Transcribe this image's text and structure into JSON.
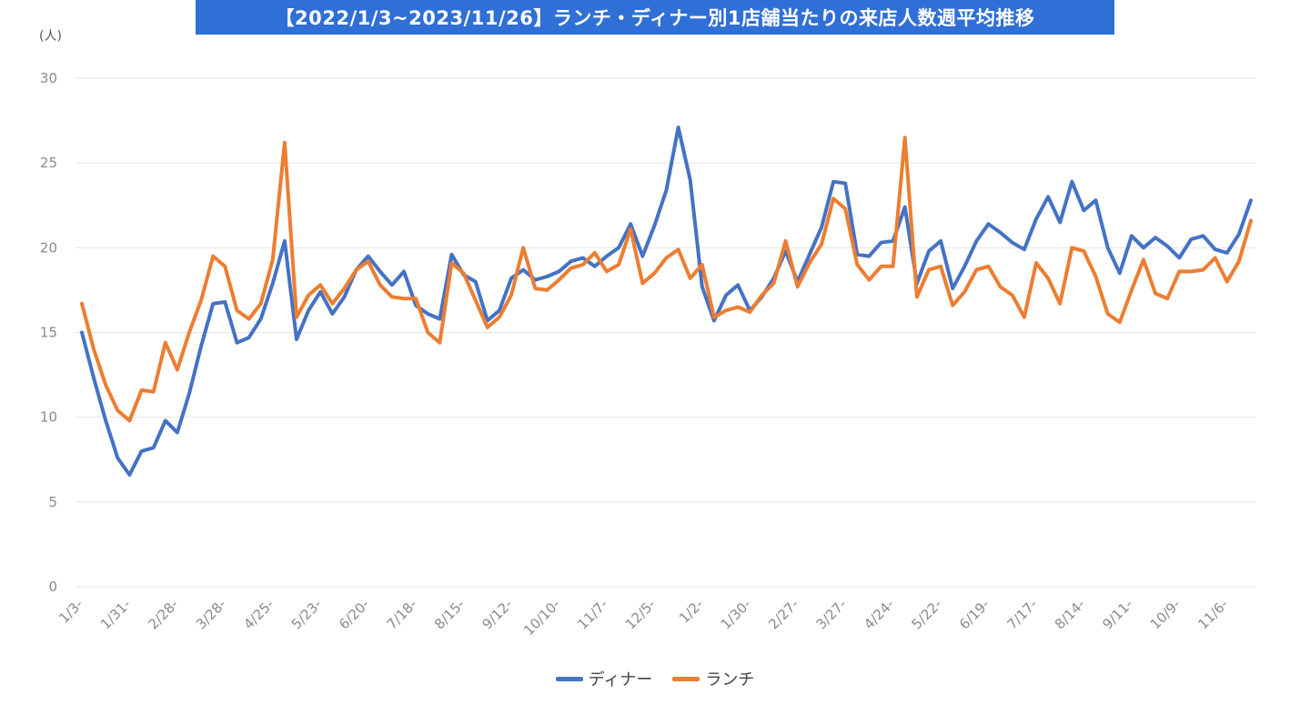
{
  "chart_data": {
    "type": "line",
    "title": "【2022/1/3~2023/11/26】ランチ・ディナー別1店舗当たりの来店人数週平均推移",
    "ylabel": "(人)",
    "xlabel": "",
    "ylim": [
      0,
      30
    ],
    "yticks": [
      0,
      5,
      10,
      15,
      20,
      25,
      30
    ],
    "grid": true,
    "legend_position": "bottom-center",
    "x_tick_labels": [
      "1/3-",
      "1/31-",
      "2/28-",
      "3/28-",
      "4/25-",
      "5/23-",
      "6/20-",
      "7/18-",
      "8/15-",
      "9/12-",
      "10/10-",
      "11/7-",
      "12/5-",
      "1/2-",
      "1/30-",
      "2/27-",
      "3/27-",
      "4/24-",
      "5/22-",
      "6/19-",
      "7/17-",
      "8/14-",
      "9/11-",
      "10/9-",
      "11/6-"
    ],
    "x_tick_every": 4,
    "series": [
      {
        "name": "ディナー",
        "color": "#4472c4",
        "values": [
          15.0,
          12.3,
          9.8,
          7.6,
          6.6,
          8.0,
          8.2,
          9.8,
          9.1,
          11.4,
          14.2,
          16.7,
          16.8,
          14.4,
          14.7,
          15.8,
          17.9,
          20.4,
          14.6,
          16.3,
          17.4,
          16.1,
          17.1,
          18.7,
          19.5,
          18.6,
          17.8,
          18.6,
          16.6,
          16.1,
          15.8,
          19.6,
          18.4,
          18.0,
          15.7,
          16.3,
          18.2,
          18.7,
          18.1,
          18.3,
          18.6,
          19.2,
          19.4,
          18.9,
          19.5,
          20.0,
          21.4,
          19.5,
          21.3,
          23.4,
          27.1,
          24.0,
          17.7,
          15.7,
          17.2,
          17.8,
          16.3,
          17.1,
          18.2,
          19.8,
          18.0,
          19.6,
          21.2,
          23.9,
          23.8,
          19.6,
          19.5,
          20.3,
          20.4,
          22.4,
          17.9,
          19.8,
          20.4,
          17.6,
          18.9,
          20.4,
          21.4,
          20.9,
          20.3,
          19.9,
          21.7,
          23.0,
          21.5,
          23.9,
          22.2,
          22.8,
          20.0,
          18.5,
          20.7,
          20.0,
          20.6,
          20.1,
          19.4,
          20.5,
          20.7,
          19.9,
          19.7,
          20.8,
          22.8
        ]
      },
      {
        "name": "ランチ",
        "color": "#ed7d31",
        "values": [
          16.7,
          14.0,
          11.9,
          10.4,
          9.8,
          11.6,
          11.5,
          14.4,
          12.8,
          15.0,
          16.9,
          19.5,
          18.9,
          16.3,
          15.8,
          16.7,
          19.3,
          26.2,
          15.9,
          17.2,
          17.8,
          16.7,
          17.6,
          18.7,
          19.2,
          17.8,
          17.1,
          17.0,
          17.0,
          15.0,
          14.4,
          19.1,
          18.5,
          16.9,
          15.3,
          15.9,
          17.2,
          20.0,
          17.6,
          17.5,
          18.1,
          18.8,
          19.0,
          19.7,
          18.6,
          19.0,
          21.1,
          17.9,
          18.5,
          19.4,
          19.9,
          18.2,
          19.0,
          15.9,
          16.3,
          16.5,
          16.2,
          17.2,
          17.9,
          20.4,
          17.7,
          19.1,
          20.2,
          22.9,
          22.3,
          19.0,
          18.1,
          18.9,
          18.9,
          26.5,
          17.1,
          18.7,
          18.9,
          16.6,
          17.4,
          18.7,
          18.9,
          17.7,
          17.2,
          15.9,
          19.1,
          18.2,
          16.7,
          20.0,
          19.8,
          18.3,
          16.1,
          15.6,
          17.5,
          19.3,
          17.3,
          17.0,
          18.6,
          18.6,
          18.7,
          19.4,
          18.0,
          19.2,
          21.6
        ]
      }
    ]
  }
}
